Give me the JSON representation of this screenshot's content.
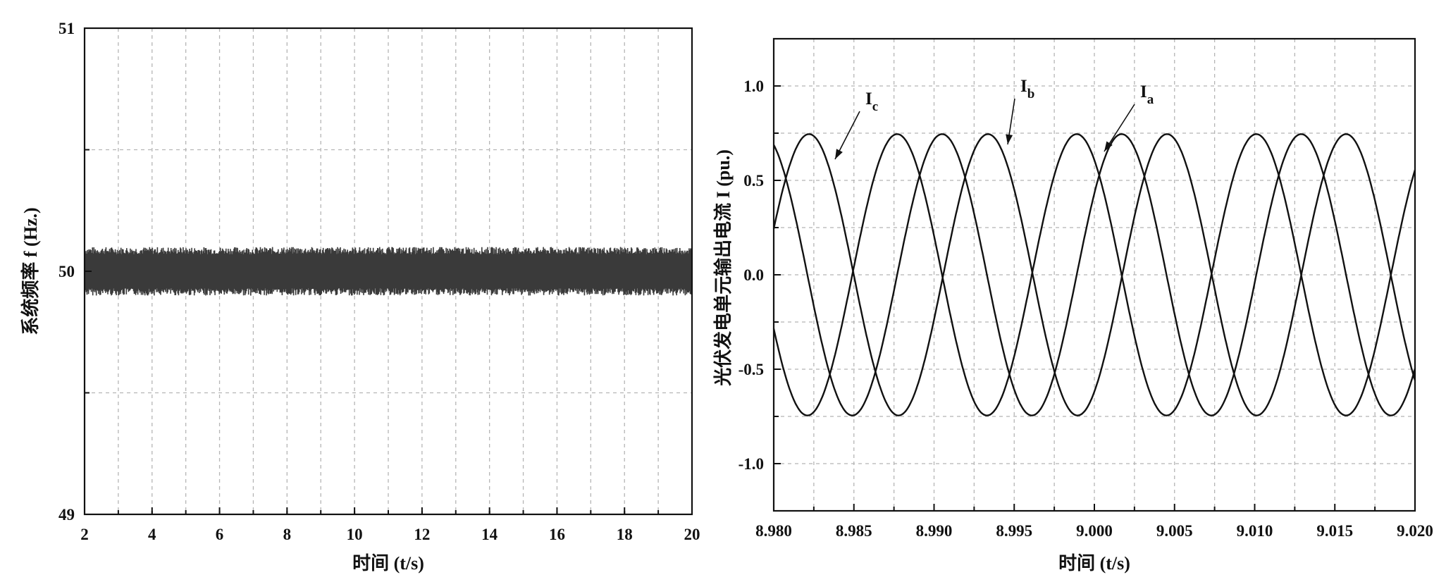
{
  "chart_data": [
    {
      "type": "line",
      "xlabel": "时间 (t/s)",
      "ylabel": "系统频率 f (Hz.)",
      "xlim": [
        2,
        20
      ],
      "ylim": [
        49,
        51
      ],
      "xticks": [
        "2",
        "4",
        "6",
        "8",
        "10",
        "12",
        "14",
        "16",
        "18",
        "20"
      ],
      "yticks": [
        "49",
        "50",
        "51"
      ],
      "grid": true,
      "series": [
        {
          "x_range": [
            2,
            20
          ],
          "center": 50.0,
          "ripple_band": [
            49.9,
            50.1
          ],
          "color": "#3a3a3a"
        }
      ]
    },
    {
      "type": "line",
      "xlabel": "时间 (t/s)",
      "ylabel": "光伏发电单元输出电流 I (pu.)",
      "xlim": [
        8.98,
        9.02
      ],
      "ylim": [
        -1.25,
        1.25
      ],
      "xticks": [
        "8.980",
        "8.985",
        "8.990",
        "8.995",
        "9.000",
        "9.005",
        "9.010",
        "9.015",
        "9.020"
      ],
      "yticks": [
        "-1.0",
        "-0.5",
        "0.0",
        "0.5",
        "1.0"
      ],
      "grid": true,
      "annotations": [
        {
          "main": "I",
          "sub": "c"
        },
        {
          "main": "I",
          "sub": "b"
        },
        {
          "main": "I",
          "sub": "a"
        }
      ],
      "series": [
        {
          "name": "Ia",
          "amplitude": 0.745,
          "peak_times": [
            8.9877,
            8.999,
            9.0101
          ],
          "color": "#111111"
        },
        {
          "name": "Ib",
          "amplitude": 0.745,
          "peak_times": [
            8.9822,
            8.9934,
            9.0045,
            9.0157
          ],
          "color": "#111111"
        },
        {
          "name": "Ic",
          "amplitude": 0.745,
          "trough_times": [
            8.9849,
            8.9962,
            9.0073
          ],
          "color": "#111111"
        }
      ]
    }
  ]
}
